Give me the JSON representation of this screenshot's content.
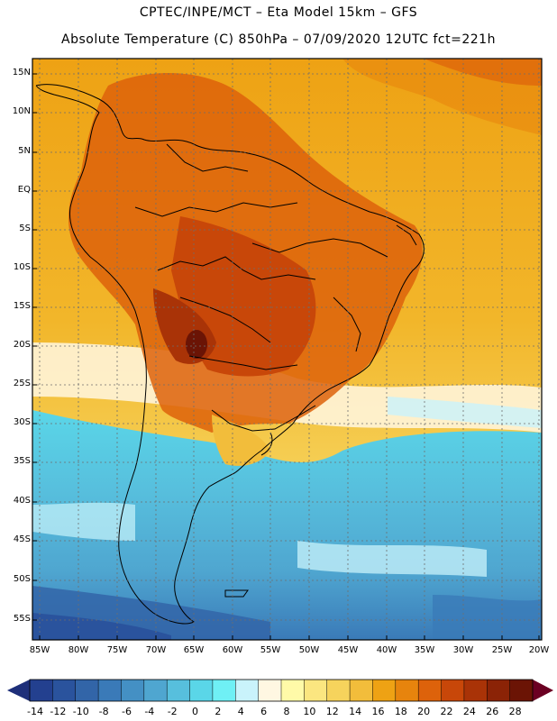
{
  "header": {
    "line1": "CPTEC/INPE/MCT –  Eta Model 15km – GFS",
    "line2": "Absolute Temperature (C) 850hPa – 07/09/2020 12UTC fct=221h"
  },
  "axes": {
    "lat_labels": [
      "15N",
      "10N",
      "5N",
      "EQ",
      "5S",
      "10S",
      "15S",
      "20S",
      "25S",
      "30S",
      "35S",
      "40S",
      "45S",
      "50S",
      "55S"
    ],
    "lon_labels": [
      "85W",
      "80W",
      "75W",
      "70W",
      "65W",
      "60W",
      "55W",
      "50W",
      "45W",
      "40W",
      "35W",
      "30W",
      "25W",
      "20W"
    ]
  },
  "colorbar": {
    "labels": [
      "-14",
      "-12",
      "-10",
      "-8",
      "-6",
      "-4",
      "-2",
      "0",
      "2",
      "4",
      "6",
      "8",
      "10",
      "12",
      "14",
      "16",
      "18",
      "20",
      "22",
      "24",
      "26",
      "28"
    ],
    "colors": [
      "#23408f",
      "#2a539d",
      "#3265a8",
      "#3a7ab8",
      "#4490c4",
      "#4fa6d0",
      "#57bfdd",
      "#5ad6e8",
      "#6ff0f5",
      "#c9f3fb",
      "#fff7e2",
      "#fffaa8",
      "#fbe680",
      "#f6d35c",
      "#f2bd3b",
      "#eea214",
      "#e7840d",
      "#dd620b",
      "#c84709",
      "#a93307",
      "#8b2306",
      "#6b1405"
    ]
  }
}
